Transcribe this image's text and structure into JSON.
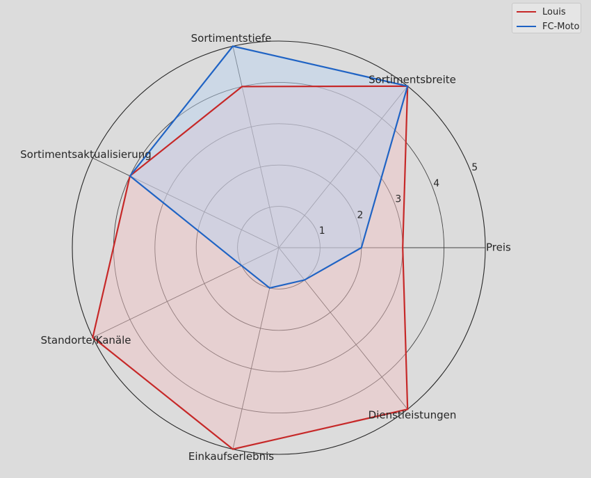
{
  "chart_data": {
    "type": "radar",
    "axes": [
      "Preis",
      "Sortimentsbreite",
      "Sortimentstiefe",
      "Sortimentsaktualisierung",
      "Standorte/Kanäle",
      "Einkaufserlebnis",
      "Dienstleistungen"
    ],
    "rlim": [
      0,
      5
    ],
    "rticks": [
      1,
      2,
      3,
      4,
      5
    ],
    "rtick_labels": [
      "1",
      "2",
      "3",
      "4",
      "5"
    ],
    "grid": true,
    "legend_position": "top-right",
    "series": [
      {
        "name": "Louis",
        "values": [
          3,
          5,
          4,
          4,
          5,
          5,
          5
        ],
        "color": "#c62828",
        "fill": "#f2c0c4"
      },
      {
        "name": "FC-Moto",
        "values": [
          2,
          5,
          5,
          4,
          1,
          1,
          1
        ],
        "color": "#1f63c4",
        "fill": "#b9d3f2"
      }
    ]
  }
}
